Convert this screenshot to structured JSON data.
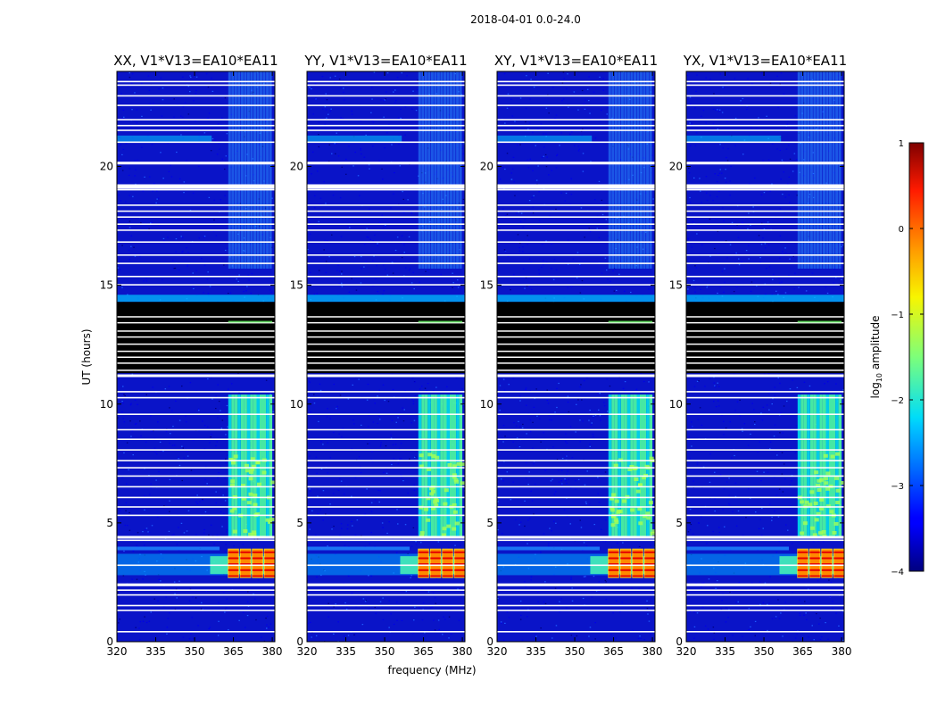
{
  "figure": {
    "suptitle": "2018-04-01 0.0-24.0",
    "ylabel": "UT (hours)",
    "xlabel": "frequency (MHz)"
  },
  "chart_data": {
    "type": "heatmap",
    "title": "2018-04-01 0.0-24.0",
    "xlabel": "frequency (MHz)",
    "ylabel": "UT (hours)",
    "xlim": [
      320,
      381
    ],
    "ylim": [
      0,
      24
    ],
    "x_ticks": [
      320,
      335,
      350,
      365,
      380
    ],
    "y_ticks": [
      0,
      5,
      10,
      15,
      20
    ],
    "panels": [
      {
        "title": "XX, V1*V13=EA10*EA11",
        "pol": "XX"
      },
      {
        "title": "YY, V1*V13=EA10*EA11",
        "pol": "YY"
      },
      {
        "title": "XY, V1*V13=EA10*EA11",
        "pol": "XY"
      },
      {
        "title": "YX, V1*V13=EA10*EA11",
        "pol": "YX"
      }
    ],
    "colorbar": {
      "label": "log10 amplitude",
      "label_main": "log",
      "label_sub": "10",
      "label_rest": " amplitude",
      "range": [
        -4,
        1
      ],
      "ticks": [
        1,
        0,
        -1,
        -2,
        -3,
        -4
      ],
      "tick_labels": [
        "1",
        "0",
        "−1",
        "−2",
        "−3",
        "−4"
      ],
      "colormap": "jet"
    },
    "flagged_time_bands_hours": [
      [
        11.3,
        14.3
      ]
    ],
    "bright_rfi_block": {
      "freq_range_mhz": [
        363,
        380
      ],
      "time_range_hours": [
        2.7,
        3.9
      ],
      "level_log10": 0.5
    },
    "rfi_freq_band_mhz": [
      363,
      380
    ],
    "colors": {
      "background": "#00007f",
      "flag": "#000000",
      "gap": "#ffffff"
    }
  }
}
